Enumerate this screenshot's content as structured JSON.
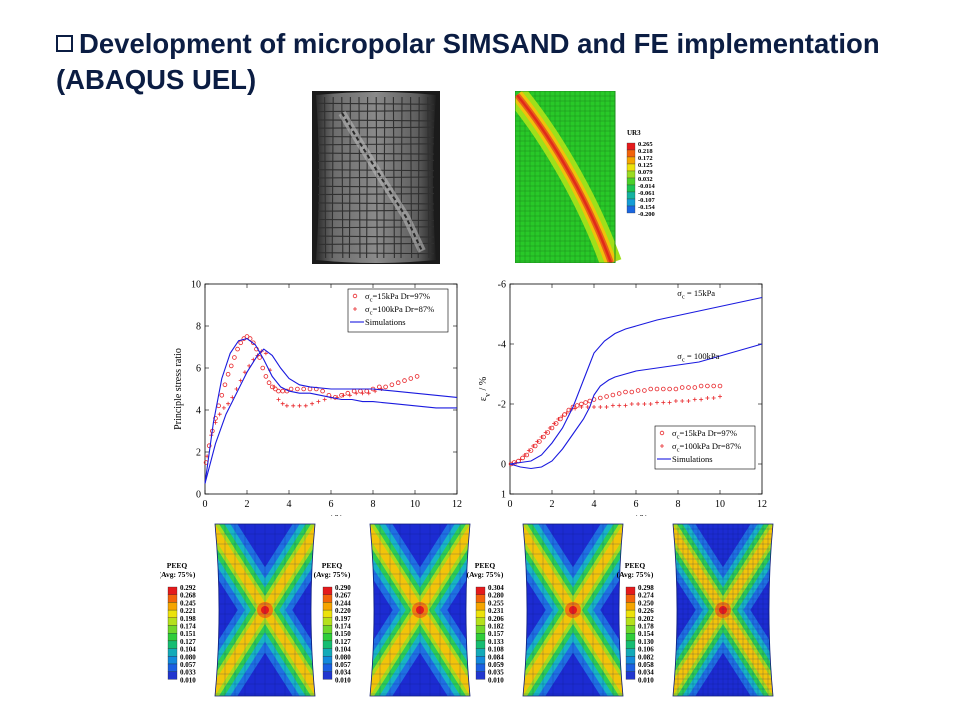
{
  "slide": {
    "title_line1": "Development of micropolar SIMSAND and FE implementation",
    "title_line2": "(ABAQUS UEL)"
  },
  "ur3_legend": {
    "title": "UR3",
    "values": [
      "0.265",
      "0.218",
      "0.172",
      "0.125",
      "0.079",
      "0.032",
      "-0.014",
      "-0.061",
      "-0.107",
      "-0.154",
      "-0.200"
    ],
    "colors": [
      "#e41a1c",
      "#f2630a",
      "#f5a500",
      "#ece20b",
      "#9bdc21",
      "#4ad12a",
      "#1bc451",
      "#15b3a0",
      "#149dd6",
      "#1a66e0",
      "#2437c9"
    ]
  },
  "peeq_panels": [
    {
      "title": "PEEQ",
      "subtitle": "(Avg: 75%)",
      "values": [
        "0.292",
        "0.268",
        "0.245",
        "0.221",
        "0.198",
        "0.174",
        "0.151",
        "0.127",
        "0.104",
        "0.080",
        "0.057",
        "0.033",
        "0.010"
      ]
    },
    {
      "title": "PEEQ",
      "subtitle": "(Avg: 75%)",
      "values": [
        "0.290",
        "0.267",
        "0.244",
        "0.220",
        "0.197",
        "0.174",
        "0.150",
        "0.127",
        "0.104",
        "0.080",
        "0.057",
        "0.034",
        "0.010"
      ]
    },
    {
      "title": "PEEQ",
      "subtitle": "(Avg: 75%)",
      "values": [
        "0.304",
        "0.280",
        "0.255",
        "0.231",
        "0.206",
        "0.182",
        "0.157",
        "0.133",
        "0.108",
        "0.084",
        "0.059",
        "0.035",
        "0.010"
      ]
    },
    {
      "title": "PEEQ",
      "subtitle": "(Avg: 75%)",
      "values": [
        "0.298",
        "0.274",
        "0.250",
        "0.226",
        "0.202",
        "0.178",
        "0.154",
        "0.130",
        "0.106",
        "0.082",
        "0.058",
        "0.034",
        "0.010"
      ]
    }
  ],
  "peeq_colors": [
    "#e41a1c",
    "#f2630a",
    "#f5a500",
    "#ece20b",
    "#b5e01b",
    "#6fd72a",
    "#2fcd3a",
    "#16bd72",
    "#14aab8",
    "#1389dc",
    "#1a5fe2",
    "#2136cf",
    "#2a15b5"
  ],
  "chart_data": [
    {
      "type": "scatter",
      "xlabel": "ε_a / %",
      "ylabel": "Principle stress ratio",
      "xlim": [
        0,
        12
      ],
      "ylim": [
        0,
        10
      ],
      "xticks": [
        "0",
        "2",
        "4",
        "6",
        "8",
        "10",
        "12"
      ],
      "yticks": [
        "0",
        "2",
        "4",
        "6",
        "8",
        "10"
      ],
      "legend_position": "top-right",
      "legend": [
        {
          "marker": "o",
          "text": "σ_c=15kPa  Dr=97%"
        },
        {
          "marker": "+",
          "text": "σ_c=100kPa Dr=87%"
        },
        {
          "marker": "line",
          "text": "Simulations"
        }
      ],
      "series": [
        {
          "name": "σc=15kPa Dr=97%",
          "marker": "o",
          "x": [
            0.05,
            0.2,
            0.35,
            0.5,
            0.65,
            0.8,
            0.95,
            1.1,
            1.25,
            1.4,
            1.55,
            1.7,
            1.85,
            2.0,
            2.15,
            2.3,
            2.45,
            2.6,
            2.75,
            2.9,
            3.05,
            3.2,
            3.35,
            3.5,
            3.7,
            3.9,
            4.1,
            4.4,
            4.7,
            5.0,
            5.3,
            5.6,
            5.9,
            6.2,
            6.5,
            6.8,
            7.1,
            7.4,
            7.7,
            8.0,
            8.3,
            8.6,
            8.9,
            9.2,
            9.5,
            9.8,
            10.1
          ],
          "y": [
            1.5,
            2.3,
            3.0,
            3.6,
            4.2,
            4.7,
            5.2,
            5.7,
            6.1,
            6.5,
            6.9,
            7.2,
            7.4,
            7.5,
            7.4,
            7.2,
            6.9,
            6.5,
            6.0,
            5.6,
            5.3,
            5.1,
            5.0,
            4.9,
            4.9,
            4.9,
            5.0,
            5.0,
            5.0,
            5.0,
            5.0,
            4.9,
            4.7,
            4.6,
            4.7,
            4.8,
            4.9,
            4.9,
            4.9,
            5.0,
            5.1,
            5.1,
            5.2,
            5.3,
            5.4,
            5.5,
            5.6
          ]
        },
        {
          "name": "σc=100kPa Dr=87%",
          "marker": "+",
          "x": [
            0.1,
            0.3,
            0.5,
            0.7,
            0.9,
            1.1,
            1.3,
            1.5,
            1.7,
            1.9,
            2.1,
            2.3,
            2.5,
            2.7,
            2.9,
            3.1,
            3.3,
            3.5,
            3.7,
            3.9,
            4.2,
            4.5,
            4.8,
            5.1,
            5.4,
            5.7,
            6.0,
            6.3,
            6.6,
            6.9,
            7.2,
            7.5,
            7.8,
            8.1,
            8.4
          ],
          "y": [
            1.8,
            2.8,
            3.4,
            3.8,
            4.1,
            4.3,
            4.6,
            5.0,
            5.4,
            5.8,
            6.1,
            6.4,
            6.6,
            6.8,
            6.7,
            5.9,
            5.1,
            4.5,
            4.3,
            4.2,
            4.2,
            4.2,
            4.2,
            4.3,
            4.4,
            4.5,
            4.6,
            4.6,
            4.7,
            4.7,
            4.8,
            4.8,
            4.8,
            4.9,
            5.0
          ]
        },
        {
          "name": "Simulations",
          "marker": "line",
          "x": [
            0,
            0.4,
            0.8,
            1.2,
            1.6,
            2.0,
            2.4,
            2.8,
            3.2,
            3.6,
            4.0,
            4.5,
            5.0,
            5.5,
            6.0,
            6.5,
            7.0,
            7.5,
            8.0,
            9.0,
            10.0,
            11.0,
            12.0
          ],
          "y": [
            0.5,
            3.4,
            5.5,
            6.7,
            7.3,
            7.4,
            7.1,
            6.4,
            5.6,
            5.1,
            4.9,
            4.8,
            4.8,
            4.7,
            4.6,
            4.5,
            4.5,
            4.4,
            4.4,
            4.3,
            4.2,
            4.1,
            4.1
          ]
        },
        {
          "name": "Simulations",
          "marker": "line",
          "x": [
            0,
            0.5,
            1.0,
            1.5,
            2.0,
            2.5,
            2.8,
            3.2,
            3.6,
            4.0,
            4.5,
            5.0,
            6.0,
            7.0,
            8.0,
            9.0,
            10.0,
            11.0,
            12.0
          ],
          "y": [
            0.5,
            2.4,
            3.8,
            4.8,
            5.8,
            6.6,
            6.9,
            6.6,
            6.0,
            5.5,
            5.2,
            5.1,
            5.0,
            5.0,
            5.0,
            4.9,
            4.8,
            4.7,
            4.6
          ]
        }
      ]
    },
    {
      "type": "scatter",
      "xlabel": "ε_a / %",
      "ylabel": "ε_v / %",
      "xlim": [
        0,
        12
      ],
      "ylim": [
        1,
        -6
      ],
      "xticks": [
        "0",
        "2",
        "4",
        "6",
        "8",
        "10",
        "12"
      ],
      "yticks": [
        "1",
        "0",
        "-2",
        "-4",
        "-6"
      ],
      "legend_position": "bottom-right",
      "legend": [
        {
          "marker": "o",
          "text": "σ_c=15kPa  Dr=97%"
        },
        {
          "marker": "+",
          "text": "σ_c=100kPa Dr=87%"
        },
        {
          "marker": "line",
          "text": "Simulations"
        }
      ],
      "annotations": [
        {
          "text": "σc = 15kPa",
          "x": 9.3,
          "y": -5.6
        },
        {
          "text": "σc = 100kPa",
          "x": 9.3,
          "y": -3.5
        }
      ],
      "series": [
        {
          "name": "σc=15kPa Dr=97%",
          "marker": "o",
          "x": [
            0.05,
            0.2,
            0.4,
            0.6,
            0.8,
            1.0,
            1.2,
            1.4,
            1.6,
            1.8,
            2.0,
            2.2,
            2.4,
            2.6,
            2.8,
            3.0,
            3.2,
            3.4,
            3.6,
            3.8,
            4.0,
            4.3,
            4.6,
            4.9,
            5.2,
            5.5,
            5.8,
            6.1,
            6.4,
            6.7,
            7.0,
            7.3,
            7.6,
            7.9,
            8.2,
            8.5,
            8.8,
            9.1,
            9.4,
            9.7,
            10.0
          ],
          "y": [
            0.0,
            -0.05,
            -0.1,
            -0.2,
            -0.3,
            -0.45,
            -0.6,
            -0.75,
            -0.9,
            -1.05,
            -1.2,
            -1.35,
            -1.5,
            -1.65,
            -1.8,
            -1.9,
            -1.95,
            -2.0,
            -2.05,
            -2.1,
            -2.15,
            -2.2,
            -2.25,
            -2.3,
            -2.35,
            -2.4,
            -2.4,
            -2.45,
            -2.45,
            -2.5,
            -2.5,
            -2.5,
            -2.5,
            -2.5,
            -2.55,
            -2.55,
            -2.55,
            -2.6,
            -2.6,
            -2.6,
            -2.6
          ]
        },
        {
          "name": "σc=100kPa Dr=87%",
          "marker": "+",
          "x": [
            0.1,
            0.3,
            0.5,
            0.7,
            0.9,
            1.1,
            1.3,
            1.5,
            1.7,
            1.9,
            2.1,
            2.3,
            2.5,
            2.7,
            2.9,
            3.1,
            3.4,
            3.7,
            4.0,
            4.3,
            4.6,
            4.9,
            5.2,
            5.5,
            5.8,
            6.1,
            6.4,
            6.7,
            7.0,
            7.3,
            7.6,
            7.9,
            8.2,
            8.5,
            8.8,
            9.1,
            9.4,
            9.7,
            10.0
          ],
          "y": [
            0.0,
            -0.05,
            -0.15,
            -0.3,
            -0.45,
            -0.6,
            -0.75,
            -0.9,
            -1.05,
            -1.2,
            -1.35,
            -1.5,
            -1.6,
            -1.7,
            -1.8,
            -1.85,
            -1.9,
            -1.9,
            -1.9,
            -1.9,
            -1.9,
            -1.95,
            -1.95,
            -1.95,
            -2.0,
            -2.0,
            -2.0,
            -2.0,
            -2.05,
            -2.05,
            -2.05,
            -2.1,
            -2.1,
            -2.1,
            -2.15,
            -2.15,
            -2.2,
            -2.2,
            -2.25
          ]
        },
        {
          "name": "Simulations",
          "marker": "line",
          "x": [
            0,
            0.5,
            1.0,
            1.5,
            2.0,
            2.5,
            3.0,
            3.5,
            4.0,
            4.5,
            5.0,
            5.5,
            6.0,
            7.0,
            8.0,
            9.0,
            10.0,
            11.0,
            12.0
          ],
          "y": [
            0.0,
            -0.05,
            -0.1,
            -0.3,
            -0.7,
            -1.2,
            -1.9,
            -2.8,
            -3.7,
            -4.1,
            -4.35,
            -4.5,
            -4.6,
            -4.8,
            -4.95,
            -5.1,
            -5.25,
            -5.4,
            -5.55
          ]
        },
        {
          "name": "Simulations",
          "marker": "line",
          "x": [
            0,
            0.5,
            1.0,
            1.5,
            2.0,
            2.5,
            3.0,
            3.5,
            3.8,
            4.0,
            4.3,
            4.7,
            5.0,
            5.5,
            6.0,
            7.0,
            8.0,
            9.0,
            10.0,
            11.0,
            12.0
          ],
          "y": [
            0.0,
            0.1,
            0.15,
            0.1,
            -0.1,
            -0.5,
            -1.0,
            -1.5,
            -1.9,
            -2.3,
            -2.6,
            -2.8,
            -2.9,
            -3.0,
            -3.1,
            -3.2,
            -3.3,
            -3.4,
            -3.6,
            -3.8,
            -4.0
          ]
        }
      ]
    }
  ]
}
